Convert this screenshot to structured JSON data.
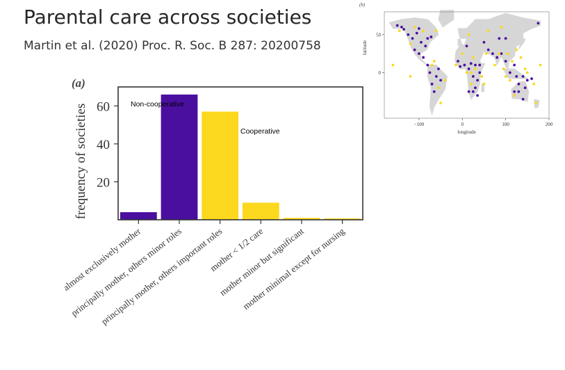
{
  "slide": {
    "title": "Parental care across societies",
    "subtitle": "Martin et al. (2020) Proc. R. Soc. B 287: 20200758"
  },
  "colors": {
    "non_cooperative": "#4b0fa0",
    "cooperative": "#fcd81e",
    "land": "#d6d6d6",
    "axis": "#333333"
  },
  "chart_data": [
    {
      "type": "bar",
      "panel_label": "(a)",
      "ylabel": "frequency of societies",
      "ylim": [
        0,
        70
      ],
      "yticks": [
        20,
        40,
        60
      ],
      "categories": [
        "almost exclusively mother",
        "principally mother, others minor roles",
        "principally mother, others important roles",
        "mother < 1/2 care",
        "mother minor but significant",
        "mother minimal except for nursing"
      ],
      "values": [
        4,
        66,
        57,
        9,
        1,
        0.5
      ],
      "bar_groups": [
        "non_cooperative",
        "non_cooperative",
        "cooperative",
        "cooperative",
        "cooperative",
        "cooperative"
      ],
      "annotations": [
        {
          "text": "Non-cooperative",
          "category_index": 1
        },
        {
          "text": "Cooperative",
          "category_index": 2
        }
      ]
    },
    {
      "type": "scatter",
      "panel_label": "(b)",
      "xlabel": "longitude",
      "ylabel": "latitude",
      "xlim": [
        -180,
        200
      ],
      "ylim": [
        -60,
        80
      ],
      "xticks": [
        -100,
        0,
        100,
        200
      ],
      "yticks": [
        0,
        50
      ],
      "xtick_labels": [
        "−100",
        "0",
        "100",
        "200"
      ],
      "ytick_labels": [
        "0",
        "50"
      ],
      "series": [
        {
          "group": "non_cooperative",
          "points": [
            [
              -150,
              62
            ],
            [
              -135,
              57
            ],
            [
              -125,
              50
            ],
            [
              -115,
              45
            ],
            [
              -105,
              52
            ],
            [
              -95,
              40
            ],
            [
              -85,
              35
            ],
            [
              -110,
              30
            ],
            [
              -100,
              25
            ],
            [
              -90,
              20
            ],
            [
              -80,
              10
            ],
            [
              -75,
              0
            ],
            [
              -70,
              -15
            ],
            [
              -65,
              -25
            ],
            [
              -60,
              -5
            ],
            [
              -55,
              5
            ],
            [
              -50,
              -10
            ],
            [
              -140,
              60
            ],
            [
              -80,
              45
            ],
            [
              -100,
              58
            ],
            [
              -72,
              47
            ],
            [
              10,
              35
            ],
            [
              20,
              12
            ],
            [
              30,
              10
            ],
            [
              15,
              5
            ],
            [
              25,
              -5
            ],
            [
              35,
              -10
            ],
            [
              40,
              0
            ],
            [
              5,
              10
            ],
            [
              -10,
              15
            ],
            [
              -5,
              8
            ],
            [
              15,
              -25
            ],
            [
              25,
              -25
            ],
            [
              30,
              -20
            ],
            [
              35,
              -30
            ],
            [
              60,
              30
            ],
            [
              70,
              25
            ],
            [
              80,
              20
            ],
            [
              90,
              25
            ],
            [
              100,
              15
            ],
            [
              110,
              0
            ],
            [
              120,
              10
            ],
            [
              125,
              -5
            ],
            [
              130,
              -15
            ],
            [
              140,
              -5
            ],
            [
              150,
              -10
            ],
            [
              160,
              -8
            ],
            [
              145,
              -20
            ],
            [
              120,
              -25
            ],
            [
              130,
              -25
            ],
            [
              140,
              -35
            ],
            [
              175,
              65
            ],
            [
              85,
              45
            ],
            [
              50,
              40
            ],
            [
              100,
              45
            ],
            [
              40,
              10
            ]
          ]
        },
        {
          "group": "cooperative",
          "points": [
            [
              -145,
              55
            ],
            [
              -120,
              38
            ],
            [
              -110,
              60
            ],
            [
              -90,
              55
            ],
            [
              -60,
              55
            ],
            [
              -70,
              10
            ],
            [
              -65,
              15
            ],
            [
              -40,
              -10
            ],
            [
              -55,
              -20
            ],
            [
              -50,
              -40
            ],
            [
              -160,
              10
            ],
            [
              -120,
              -5
            ],
            [
              15,
              50
            ],
            [
              25,
              20
            ],
            [
              10,
              0
            ],
            [
              20,
              0
            ],
            [
              30,
              5
            ],
            [
              45,
              -5
            ],
            [
              50,
              -15
            ],
            [
              20,
              -15
            ],
            [
              -15,
              10
            ],
            [
              0,
              25
            ],
            [
              55,
              25
            ],
            [
              75,
              10
            ],
            [
              85,
              25
            ],
            [
              95,
              5
            ],
            [
              105,
              25
            ],
            [
              115,
              15
            ],
            [
              125,
              30
            ],
            [
              135,
              20
            ],
            [
              145,
              5
            ],
            [
              150,
              0
            ],
            [
              165,
              -15
            ],
            [
              170,
              -40
            ],
            [
              120,
              -30
            ],
            [
              110,
              -10
            ],
            [
              60,
              55
            ],
            [
              90,
              60
            ],
            [
              180,
              10
            ],
            [
              100,
              -5
            ]
          ]
        }
      ]
    }
  ]
}
